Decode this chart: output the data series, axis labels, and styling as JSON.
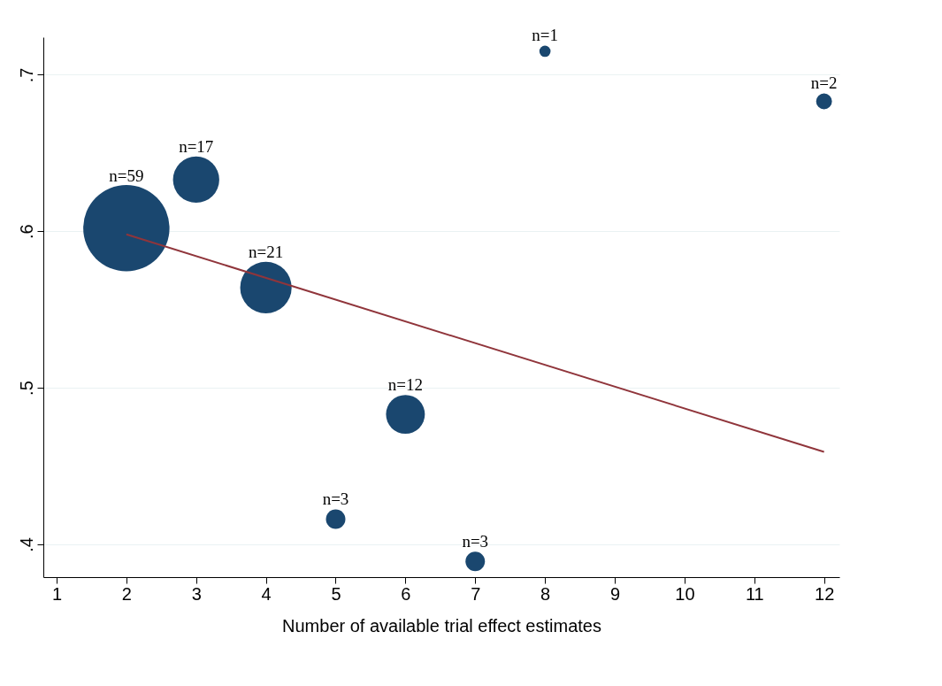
{
  "chart_data": {
    "type": "bubble",
    "xlabel": "Number of available trial effect estimates",
    "x": [
      2,
      3,
      4,
      5,
      6,
      7,
      8,
      12
    ],
    "series": [
      {
        "color": "#1a476f",
        "values": [
          0.602,
          0.633,
          0.564,
          0.416,
          0.483,
          0.389,
          0.715,
          0.683
        ],
        "sizes": [
          1,
          0.288,
          0.356,
          0.0508,
          0.203,
          0.0508,
          0.0169,
          0.0339
        ]
      },
      {
        "type": "line",
        "color": "#90353b",
        "x": [
          2,
          12
        ],
        "values": [
          0.598,
          0.459
        ]
      }
    ],
    "annotations": [
      {
        "text": "n=59",
        "x": 2,
        "y": 0.602
      },
      {
        "text": "n=17",
        "x": 3,
        "y": 0.633
      },
      {
        "text": "n=21",
        "x": 4,
        "y": 0.564
      },
      {
        "text": "n=3",
        "x": 5,
        "y": 0.416
      },
      {
        "text": "n=12",
        "x": 6,
        "y": 0.483
      },
      {
        "text": "n=3",
        "x": 7,
        "y": 0.389
      },
      {
        "text": "n=1",
        "x": 8,
        "y": 0.715
      },
      {
        "text": "n=2",
        "x": 12,
        "y": 0.683
      }
    ],
    "xlim": [
      0.81,
      12.22
    ],
    "ylim": [
      0.379,
      0.724
    ],
    "xticks": [
      1,
      2,
      3,
      4,
      5,
      6,
      7,
      8,
      9,
      10,
      11,
      12
    ],
    "yticks": [
      {
        "value": 0.4,
        "label": ".4"
      },
      {
        "value": 0.5,
        "label": ".5"
      },
      {
        "value": 0.6,
        "label": ".6"
      },
      {
        "value": 0.7,
        "label": ".7"
      }
    ],
    "grid": "y"
  }
}
